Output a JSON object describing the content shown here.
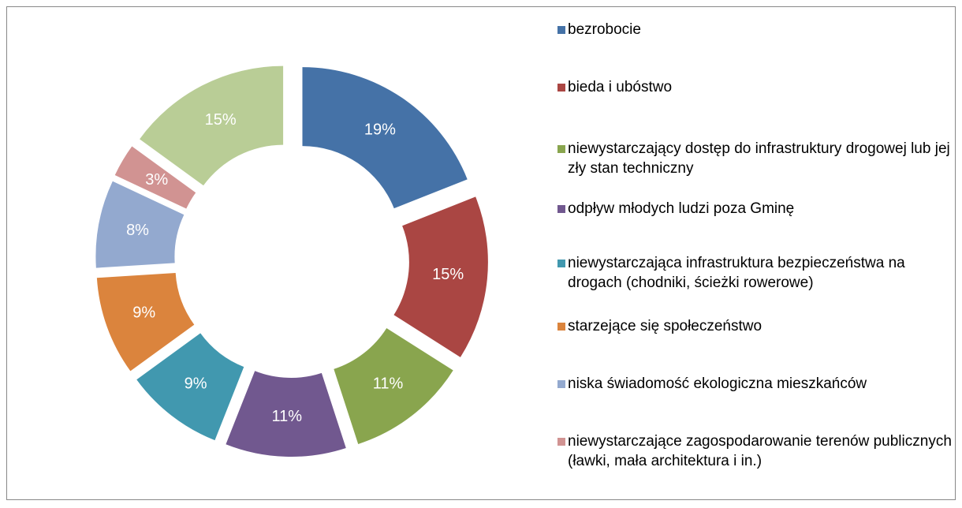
{
  "chart_data": {
    "type": "donut",
    "categories": [
      "bezrobocie",
      "bieda i ubóstwo",
      "niewystarczający dostęp do infrastruktury drogowej lub jej zły stan techniczny",
      "odpływ młodych ludzi poza Gminę",
      "niewystarczająca infrastruktura bezpieczeństwa na drogach (chodniki, ścieżki rowerowe)",
      "starzejące się społeczeństwo",
      "niska świadomość ekologiczna mieszkańców",
      "niewystarczające zagospodarowanie terenów publicznych (ławki, mała architektura i in.)",
      null
    ],
    "values": [
      19,
      15,
      11,
      11,
      9,
      9,
      8,
      3,
      15
    ],
    "value_labels": [
      "19%",
      "15%",
      "11%",
      "11%",
      "9%",
      "9%",
      "8%",
      "3%",
      "15%"
    ],
    "colors": [
      "#4572a7",
      "#aa4643",
      "#89a54e",
      "#71588f",
      "#4198af",
      "#db843d",
      "#93a9cf",
      "#d19392",
      "#b9cd96"
    ],
    "legend": "right"
  }
}
